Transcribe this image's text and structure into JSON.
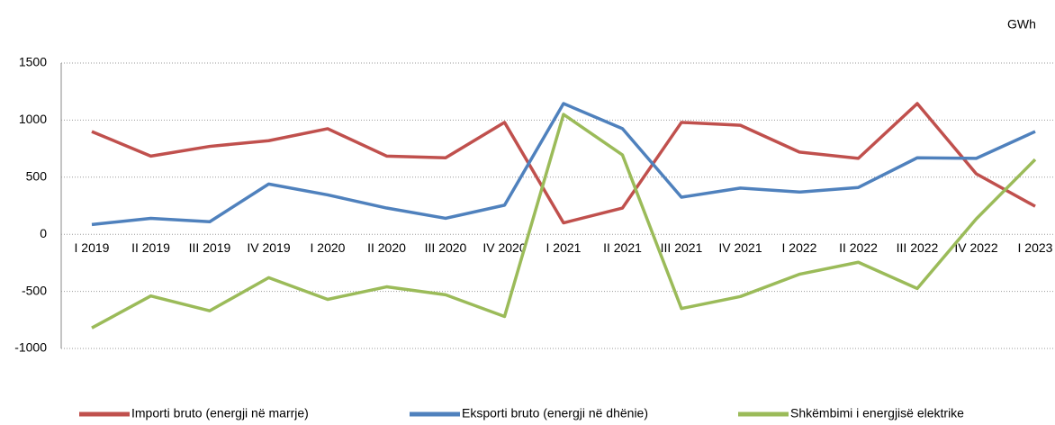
{
  "chart_data": {
    "type": "line",
    "unit": "GWh",
    "categories": [
      "I 2019",
      "II 2019",
      "III 2019",
      "IV 2019",
      "I 2020",
      "II 2020",
      "III 2020",
      "IV 2020",
      "I 2021",
      "II 2021",
      "III 2021",
      "IV 2021",
      "I 2022",
      "II 2022",
      "III 2022",
      "IV 2022",
      "I 2023"
    ],
    "series": [
      {
        "name": "Importi bruto (energji në marrje)",
        "color": "#c0504d",
        "values": [
          900,
          685,
          770,
          820,
          925,
          685,
          670,
          980,
          100,
          230,
          980,
          955,
          720,
          665,
          1145,
          530,
          245
        ]
      },
      {
        "name": "Eksporti bruto (energji në dhënie)",
        "color": "#4f81bd",
        "values": [
          85,
          140,
          110,
          440,
          345,
          230,
          140,
          255,
          1145,
          925,
          325,
          405,
          370,
          410,
          670,
          665,
          900
        ]
      },
      {
        "name": "Shkëmbimi i energjisë elektrike",
        "color": "#9bbb59",
        "values": [
          -820,
          -540,
          -670,
          -380,
          -570,
          -460,
          -530,
          -720,
          1050,
          695,
          -650,
          -545,
          -350,
          -245,
          -475,
          135,
          655
        ]
      }
    ],
    "ylim": [
      -1000,
      1500
    ],
    "yticks": [
      -1000,
      -500,
      0,
      500,
      1000,
      1500
    ],
    "grid": true,
    "legend": "bottom"
  }
}
